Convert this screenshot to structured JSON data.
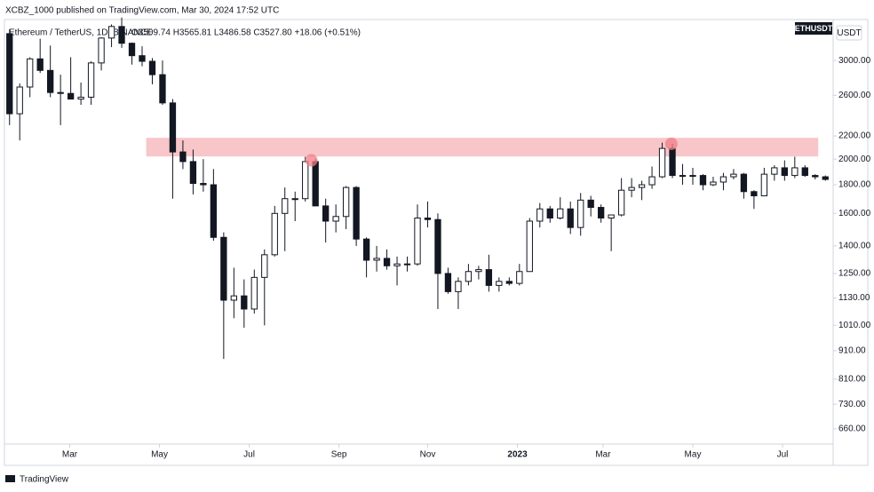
{
  "header": {
    "credit": "XCBZ_1000 published on TradingView.com, Mar 30, 2024 17:52 UTC",
    "footer": "TradingView"
  },
  "chart_data": {
    "type": "candlestick",
    "title": "Ethereum / TetherUS, 1D, BINANCE",
    "ohlc_summary": "O3509.74 H3565.81 L3486.58 C3527.80 +18.06 (+0.51%)",
    "symbol_label": "ETHUSDT",
    "axis_unit": "USDT",
    "log_scale": true,
    "up_color": "#ffffff",
    "down_color": "#131722",
    "outline_color": "#131722",
    "open": [
      3350,
      2410,
      2690,
      3020,
      2880,
      2630,
      2620,
      2560,
      2580,
      2970,
      3290,
      3450,
      3220,
      3060,
      2990,
      2830,
      2520,
      2060,
      1980,
      1810,
      1800,
      1450,
      1120,
      1140,
      1080,
      1230,
      1350,
      1600,
      1700,
      1700,
      1980,
      1650,
      1550,
      1580,
      1780,
      1440,
      1320,
      1330,
      1290,
      1300,
      1300,
      1570,
      1560,
      1250,
      1160,
      1210,
      1260,
      1270,
      1190,
      1210,
      1200,
      1260,
      1550,
      1630,
      1570,
      1630,
      1510,
      1690,
      1640,
      1570,
      1590,
      1760,
      1780,
      1800,
      1860,
      2090,
      1870,
      1870,
      1870,
      1800,
      1820,
      1860,
      1880,
      1750,
      1720,
      1880,
      1930,
      1870,
      1930,
      1870,
      1860
    ],
    "high": [
      3410,
      2730,
      3040,
      3280,
      3190,
      2830,
      3040,
      2740,
      2990,
      3300,
      3480,
      3580,
      3230,
      3180,
      3030,
      3000,
      2560,
      2160,
      2080,
      2000,
      1920,
      1480,
      1280,
      1220,
      1270,
      1380,
      1650,
      1780,
      1750,
      2020,
      2000,
      1700,
      1660,
      1790,
      1790,
      1450,
      1400,
      1380,
      1340,
      1340,
      1660,
      1680,
      1600,
      1280,
      1230,
      1300,
      1290,
      1350,
      1230,
      1230,
      1300,
      1570,
      1670,
      1650,
      1710,
      1680,
      1740,
      1720,
      1660,
      1590,
      1850,
      1850,
      1830,
      1940,
      2140,
      2130,
      1960,
      1930,
      1880,
      1860,
      1890,
      1920,
      1890,
      1760,
      1930,
      1950,
      1990,
      2020,
      1950,
      1880,
      1870
    ],
    "low": [
      2300,
      2160,
      2580,
      2850,
      2580,
      2300,
      2560,
      2500,
      2500,
      2880,
      3170,
      3160,
      2950,
      2930,
      2720,
      2500,
      1700,
      1920,
      1730,
      1750,
      1430,
      880,
      1040,
      1000,
      1060,
      1010,
      1340,
      1370,
      1550,
      1680,
      1650,
      1420,
      1480,
      1500,
      1400,
      1230,
      1260,
      1270,
      1190,
      1260,
      1290,
      1510,
      1080,
      1150,
      1080,
      1190,
      1220,
      1160,
      1160,
      1190,
      1190,
      1260,
      1510,
      1540,
      1560,
      1470,
      1460,
      1580,
      1540,
      1370,
      1580,
      1710,
      1690,
      1770,
      1850,
      1850,
      1800,
      1800,
      1760,
      1790,
      1760,
      1840,
      1700,
      1630,
      1720,
      1830,
      1830,
      1850,
      1860,
      1840,
      1830
    ],
    "close": [
      2410,
      2690,
      3020,
      2880,
      2630,
      2620,
      2560,
      2580,
      2970,
      3290,
      3450,
      3220,
      3060,
      2990,
      2830,
      2520,
      2060,
      1980,
      1810,
      1800,
      1450,
      1120,
      1140,
      1080,
      1230,
      1350,
      1600,
      1700,
      1700,
      1980,
      1650,
      1550,
      1580,
      1780,
      1440,
      1320,
      1330,
      1290,
      1300,
      1300,
      1570,
      1560,
      1250,
      1160,
      1210,
      1260,
      1270,
      1190,
      1210,
      1200,
      1260,
      1550,
      1630,
      1570,
      1630,
      1510,
      1690,
      1640,
      1570,
      1590,
      1760,
      1780,
      1800,
      1860,
      2090,
      1870,
      1870,
      1870,
      1800,
      1820,
      1860,
      1880,
      1750,
      1720,
      1880,
      1930,
      1870,
      1930,
      1870,
      1860,
      1840
    ],
    "xlim": [
      0,
      81
    ],
    "xticks": [
      {
        "value": 6.4,
        "label": "Mar"
      },
      {
        "value": 15.2,
        "label": "May"
      },
      {
        "value": 24.0,
        "label": "Jul"
      },
      {
        "value": 32.8,
        "label": "Sep"
      },
      {
        "value": 41.5,
        "label": "Nov"
      },
      {
        "value": 50.3,
        "label": "2023"
      },
      {
        "value": 58.7,
        "label": "Mar"
      },
      {
        "value": 67.5,
        "label": "May"
      },
      {
        "value": 76.3,
        "label": "Jul"
      }
    ],
    "ylim": [
      620,
      3550
    ],
    "yticks": [
      {
        "value": 3000,
        "label": "3000.00"
      },
      {
        "value": 2600,
        "label": "2600.00"
      },
      {
        "value": 2200,
        "label": "2200.00"
      },
      {
        "value": 2000,
        "label": "2000.00"
      },
      {
        "value": 1800,
        "label": "1800.00"
      },
      {
        "value": 1600,
        "label": "1600.00"
      },
      {
        "value": 1400,
        "label": "1400.00"
      },
      {
        "value": 1250,
        "label": "1250.00"
      },
      {
        "value": 1130,
        "label": "1130.00"
      },
      {
        "value": 1010,
        "label": "1010.00"
      },
      {
        "value": 910,
        "label": "910.00"
      },
      {
        "value": 810,
        "label": "810.00"
      },
      {
        "value": 730,
        "label": "730.00"
      },
      {
        "value": 660,
        "label": "660.00"
      }
    ],
    "zone": {
      "x": [
        13.9,
        79.8
      ],
      "y": [
        2022,
        2183
      ],
      "color": "#f8c5c9"
    },
    "highlights": [
      {
        "x": 30.1,
        "y": 1990
      },
      {
        "x": 65.4,
        "y": 2130
      }
    ],
    "highlight_color": "#f07c86"
  }
}
